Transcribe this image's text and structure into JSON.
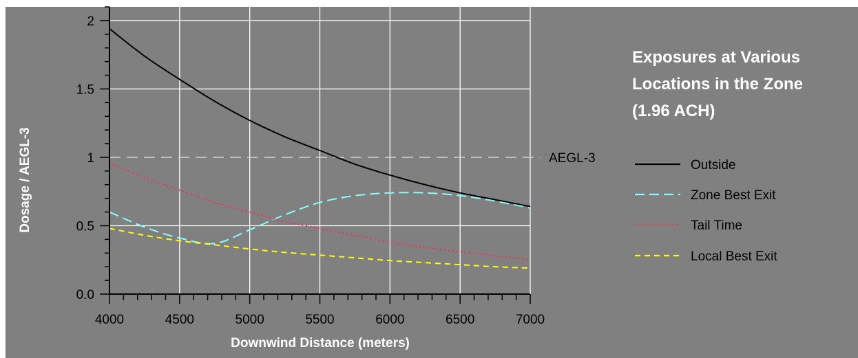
{
  "chart_data": {
    "type": "line",
    "title": [
      "Exposures at Various",
      "Locations in the Zone",
      "(1.96 ACH)"
    ],
    "xlabel": "Downwind Distance (meters)",
    "ylabel": "Dosage / AEGL-3",
    "xlim": [
      4000,
      7000
    ],
    "ylim": [
      0,
      2.1
    ],
    "x_ticks": [
      {
        "value": 4000,
        "label": "4000"
      },
      {
        "value": 4500,
        "label": "4500"
      },
      {
        "value": 5000,
        "label": "5000"
      },
      {
        "value": 5500,
        "label": "5500"
      },
      {
        "value": 6000,
        "label": "6000"
      },
      {
        "value": 6500,
        "label": "6500"
      },
      {
        "value": 7000,
        "label": "7000"
      }
    ],
    "y_ticks": [
      {
        "value": 0,
        "label": "0.0"
      },
      {
        "value": 0.5,
        "label": "0.5"
      },
      {
        "value": 1,
        "label": "1"
      },
      {
        "value": 1.5,
        "label": "1.5"
      },
      {
        "value": 2,
        "label": "2"
      }
    ],
    "grid": true,
    "legend_position": "right",
    "reference_line": {
      "y": 1.0,
      "label": "AEGL-3",
      "color": "#dddddd"
    },
    "x": [
      4000,
      4250,
      4500,
      4750,
      5000,
      5250,
      5500,
      5750,
      6000,
      6250,
      6500,
      6750,
      7000
    ],
    "series": [
      {
        "name": "Outside",
        "color": "#000000",
        "style": "solid",
        "values": [
          1.94,
          1.74,
          1.57,
          1.41,
          1.27,
          1.15,
          1.05,
          0.95,
          0.87,
          0.8,
          0.74,
          0.69,
          0.64
        ]
      },
      {
        "name": "Zone Best Exit",
        "color": "#88ffff",
        "style": "dashed",
        "values": [
          0.6,
          0.49,
          0.41,
          0.37,
          0.47,
          0.58,
          0.67,
          0.72,
          0.74,
          0.74,
          0.72,
          0.68,
          0.63
        ]
      },
      {
        "name": "Tail Time",
        "color": "#ff2d55",
        "style": "dotted",
        "values": [
          0.96,
          0.85,
          0.76,
          0.67,
          0.6,
          0.53,
          0.48,
          0.43,
          0.38,
          0.34,
          0.31,
          0.28,
          0.25
        ]
      },
      {
        "name": "Local Best Exit",
        "color": "#ffff00",
        "style": "short-dash",
        "values": [
          0.48,
          0.43,
          0.39,
          0.36,
          0.33,
          0.305,
          0.285,
          0.265,
          0.245,
          0.23,
          0.215,
          0.2,
          0.19
        ]
      }
    ]
  }
}
